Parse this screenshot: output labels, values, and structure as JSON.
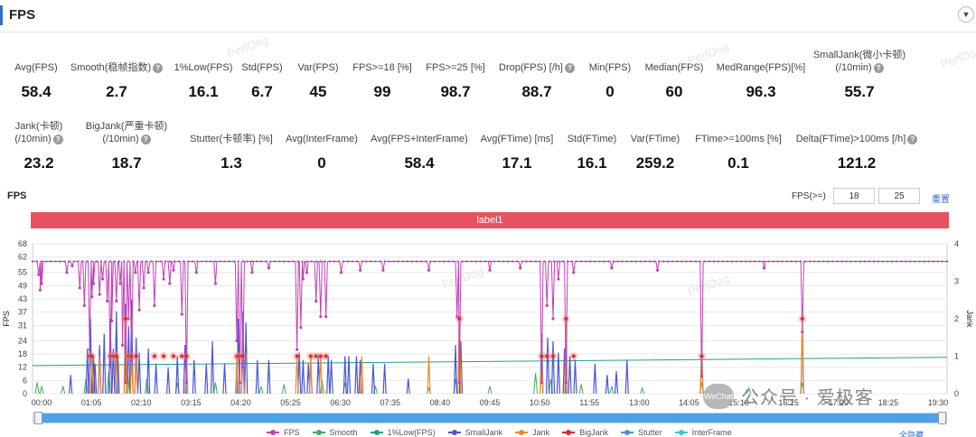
{
  "header": {
    "title": "FPS",
    "collapse_icon": "chevron-down-icon"
  },
  "metrics_row1": [
    {
      "label": "Avg(FPS)",
      "value": "58.4",
      "help": false
    },
    {
      "label": "Smooth(稳帧指数)",
      "value": "2.7",
      "help": true
    },
    {
      "label": "1%Low(FPS)",
      "value": "16.1",
      "help": false
    },
    {
      "label": "Std(FPS)",
      "value": "6.7",
      "help": false
    },
    {
      "label": "Var(FPS)",
      "value": "45",
      "help": false
    },
    {
      "label": "FPS>=18 [%]",
      "value": "99",
      "help": false
    },
    {
      "label": "FPS>=25 [%]",
      "value": "98.7",
      "help": false
    },
    {
      "label": "Drop(FPS) [/h]",
      "value": "88.7",
      "help": true
    },
    {
      "label": "Min(FPS)",
      "value": "0",
      "help": false
    },
    {
      "label": "Median(FPS)",
      "value": "60",
      "help": false
    },
    {
      "label": "MedRange(FPS)[%]",
      "value": "96.3",
      "help": false
    },
    {
      "label": "SmallJank(微小卡顿)",
      "label2": "(/10min)",
      "value": "55.7",
      "help": true
    }
  ],
  "metrics_row2": [
    {
      "label": "Jank(卡顿)",
      "label2": "(/10min)",
      "value": "23.2",
      "help": true
    },
    {
      "label": "BigJank(严重卡顿)",
      "label2": "(/10min)",
      "value": "18.7",
      "help": true
    },
    {
      "label": "Stutter(卡顿率) [%]",
      "value": "1.3",
      "help": false
    },
    {
      "label": "Avg(InterFrame)",
      "value": "0",
      "help": false
    },
    {
      "label": "Avg(FPS+InterFrame)",
      "value": "58.4",
      "help": false
    },
    {
      "label": "Avg(FTime) [ms]",
      "value": "17.1",
      "help": false
    },
    {
      "label": "Std(FTime)",
      "value": "16.1",
      "help": false
    },
    {
      "label": "Var(FTime)",
      "value": "259.2",
      "help": false
    },
    {
      "label": "FTime>=100ms [%]",
      "value": "0.1",
      "help": false
    },
    {
      "label": "Delta(FTime)>100ms [/h]",
      "value": "121.2",
      "help": true
    }
  ],
  "watermark": "PerfDog",
  "section": {
    "title": "FPS",
    "threshold_label": "FPS(>=)",
    "threshold_values": [
      "18",
      "25"
    ],
    "reset_label": "重置",
    "label_bar": "label1"
  },
  "chart_data": {
    "type": "line",
    "xlabel": "",
    "ylabel": "FPS",
    "y2label": "Jank",
    "x_tick_labels": [
      "00:00",
      "01:05",
      "02:10",
      "03:15",
      "04:20",
      "05:25",
      "06:30",
      "07:35",
      "08:40",
      "09:45",
      "10:50",
      "11:55",
      "13:00",
      "14:05",
      "15:10",
      "16:15",
      "17:20",
      "18:25",
      "19:30"
    ],
    "x_range_seconds": [
      0,
      1200
    ],
    "ylim": [
      0,
      68
    ],
    "y_ticks": [
      0,
      6,
      12,
      18,
      24,
      31,
      37,
      43,
      49,
      55,
      62,
      68
    ],
    "y2lim": [
      0,
      4
    ],
    "y2_ticks": [
      0,
      1,
      2,
      3,
      4
    ],
    "grid": true,
    "legend_position": "bottom",
    "series": [
      {
        "name": "FPS",
        "color": "#c041b6"
      },
      {
        "name": "Smooth",
        "color": "#3dae5a"
      },
      {
        "name": "1%Low(FPS)",
        "color": "#17a589"
      },
      {
        "name": "SmallJank",
        "color": "#4a56d6"
      },
      {
        "name": "Jank",
        "color": "#f08a24"
      },
      {
        "name": "BigJank",
        "color": "#e02a2a"
      },
      {
        "name": "Stutter",
        "color": "#4e8fd8"
      },
      {
        "name": "InterFrame",
        "color": "#34c7e0"
      }
    ],
    "fps_baseline": 60,
    "fps_dips": [
      [
        8,
        54
      ],
      [
        10,
        47
      ],
      [
        12,
        50
      ],
      [
        45,
        55
      ],
      [
        52,
        58
      ],
      [
        62,
        48
      ],
      [
        68,
        40
      ],
      [
        75,
        20
      ],
      [
        78,
        44
      ],
      [
        80,
        50
      ],
      [
        88,
        45
      ],
      [
        92,
        52
      ],
      [
        98,
        42
      ],
      [
        102,
        12
      ],
      [
        104,
        33
      ],
      [
        110,
        42
      ],
      [
        115,
        50
      ],
      [
        118,
        22
      ],
      [
        122,
        5
      ],
      [
        126,
        34
      ],
      [
        130,
        15
      ],
      [
        135,
        55
      ],
      [
        140,
        38
      ],
      [
        146,
        48
      ],
      [
        152,
        55
      ],
      [
        160,
        40
      ],
      [
        172,
        52
      ],
      [
        180,
        50
      ],
      [
        185,
        56
      ],
      [
        196,
        36
      ],
      [
        202,
        5
      ],
      [
        215,
        55
      ],
      [
        240,
        50
      ],
      [
        268,
        24
      ],
      [
        272,
        5
      ],
      [
        276,
        12
      ],
      [
        288,
        55
      ],
      [
        310,
        57
      ],
      [
        347,
        20
      ],
      [
        352,
        30
      ],
      [
        355,
        52
      ],
      [
        360,
        55
      ],
      [
        372,
        42
      ],
      [
        378,
        35
      ],
      [
        385,
        35
      ],
      [
        405,
        55
      ],
      [
        430,
        56
      ],
      [
        460,
        56
      ],
      [
        520,
        56
      ],
      [
        557,
        35
      ],
      [
        560,
        5
      ],
      [
        600,
        56
      ],
      [
        640,
        57
      ],
      [
        668,
        5
      ],
      [
        675,
        40
      ],
      [
        683,
        34
      ],
      [
        690,
        52
      ],
      [
        700,
        5
      ],
      [
        710,
        55
      ],
      [
        760,
        57
      ],
      [
        820,
        56
      ],
      [
        878,
        8
      ],
      [
        960,
        57
      ],
      [
        1010,
        28
      ]
    ],
    "smalljank_spikes": [
      [
        50,
        0.5
      ],
      [
        72,
        1.2
      ],
      [
        76,
        2
      ],
      [
        80,
        1.0
      ],
      [
        82,
        0.8
      ],
      [
        88,
        1.3
      ],
      [
        94,
        1.6
      ],
      [
        102,
        2.0
      ],
      [
        106,
        1.2
      ],
      [
        110,
        2.2
      ],
      [
        112,
        1.0
      ],
      [
        122,
        2.4
      ],
      [
        126,
        1.8
      ],
      [
        130,
        2.5
      ],
      [
        136,
        1.5
      ],
      [
        140,
        1.1
      ],
      [
        152,
        1.2
      ],
      [
        162,
        0.8
      ],
      [
        178,
        0.7
      ],
      [
        190,
        1.0
      ],
      [
        200,
        1.3
      ],
      [
        212,
        0.9
      ],
      [
        228,
        0.8
      ],
      [
        236,
        1.4
      ],
      [
        252,
        0.8
      ],
      [
        270,
        2.0
      ],
      [
        276,
        2.2
      ],
      [
        280,
        1.9
      ],
      [
        295,
        0.9
      ],
      [
        310,
        0.9
      ],
      [
        350,
        1.1
      ],
      [
        355,
        0.9
      ],
      [
        362,
        0.8
      ],
      [
        365,
        0.9
      ],
      [
        375,
        1.0
      ],
      [
        388,
        1.0
      ],
      [
        392,
        0.9
      ],
      [
        410,
        1.0
      ],
      [
        415,
        1.0
      ],
      [
        425,
        1.0
      ],
      [
        430,
        0.9
      ],
      [
        447,
        0.8
      ],
      [
        462,
        0.8
      ],
      [
        493,
        0.4
      ],
      [
        555,
        1.3
      ],
      [
        562,
        1.4
      ],
      [
        668,
        1.6
      ],
      [
        676,
        1.5
      ],
      [
        683,
        1.4
      ],
      [
        690,
        1.1
      ],
      [
        698,
        1.2
      ],
      [
        705,
        1.0
      ],
      [
        712,
        0.9
      ],
      [
        738,
        0.8
      ],
      [
        754,
        0.5
      ],
      [
        766,
        0.6
      ],
      [
        780,
        0.9
      ],
      [
        878,
        1.2
      ],
      [
        1010,
        1.8
      ]
    ],
    "jank_spikes": [
      [
        78,
        1.0
      ],
      [
        88,
        1.0
      ],
      [
        110,
        1.0
      ],
      [
        122,
        2.0
      ],
      [
        130,
        1.0
      ],
      [
        136,
        1.0
      ],
      [
        202,
        1.0
      ],
      [
        268,
        1.0
      ],
      [
        276,
        1.0
      ],
      [
        347,
        1.0
      ],
      [
        365,
        1.0
      ],
      [
        378,
        1.0
      ],
      [
        432,
        1.0
      ],
      [
        520,
        1.0
      ],
      [
        560,
        2.0
      ],
      [
        668,
        1.0
      ],
      [
        700,
        2.0
      ],
      [
        878,
        1.0
      ],
      [
        1010,
        2.0
      ]
    ],
    "bigjank_points": [
      [
        75,
        1
      ],
      [
        78,
        1
      ],
      [
        102,
        1
      ],
      [
        106,
        1
      ],
      [
        110,
        1
      ],
      [
        122,
        2
      ],
      [
        126,
        1
      ],
      [
        130,
        1
      ],
      [
        136,
        1
      ],
      [
        160,
        1
      ],
      [
        172,
        1
      ],
      [
        185,
        1
      ],
      [
        196,
        1
      ],
      [
        202,
        1
      ],
      [
        268,
        1
      ],
      [
        272,
        1
      ],
      [
        276,
        1
      ],
      [
        347,
        1
      ],
      [
        365,
        1
      ],
      [
        372,
        1
      ],
      [
        378,
        1
      ],
      [
        385,
        1
      ],
      [
        560,
        2
      ],
      [
        668,
        1
      ],
      [
        675,
        1
      ],
      [
        683,
        1
      ],
      [
        700,
        2
      ],
      [
        710,
        1
      ],
      [
        878,
        1
      ],
      [
        1010,
        2
      ]
    ],
    "one_percent_low_line": [
      [
        0,
        0.75
      ],
      [
        1200,
        0.97
      ]
    ],
    "smooth_spikes": [
      [
        6,
        0.3
      ],
      [
        12,
        0.2
      ],
      [
        40,
        0.2
      ],
      [
        70,
        0.4
      ],
      [
        100,
        0.6
      ],
      [
        125,
        0.5
      ],
      [
        150,
        0.4
      ],
      [
        190,
        0.3
      ],
      [
        240,
        0.3
      ],
      [
        300,
        0.2
      ],
      [
        330,
        0.25
      ],
      [
        380,
        0.35
      ],
      [
        410,
        0.3
      ],
      [
        450,
        0.2
      ],
      [
        520,
        0.15
      ],
      [
        555,
        0.4
      ],
      [
        600,
        0.2
      ],
      [
        660,
        0.55
      ],
      [
        680,
        0.4
      ],
      [
        720,
        0.25
      ],
      [
        760,
        0.2
      ],
      [
        800,
        0.15
      ],
      [
        878,
        0.3
      ],
      [
        940,
        0.15
      ],
      [
        1010,
        0.3
      ]
    ]
  },
  "legend_hide_all": "全隐藏",
  "brand": {
    "badge": "WeChat",
    "text": "公众号 · 爱极客"
  }
}
